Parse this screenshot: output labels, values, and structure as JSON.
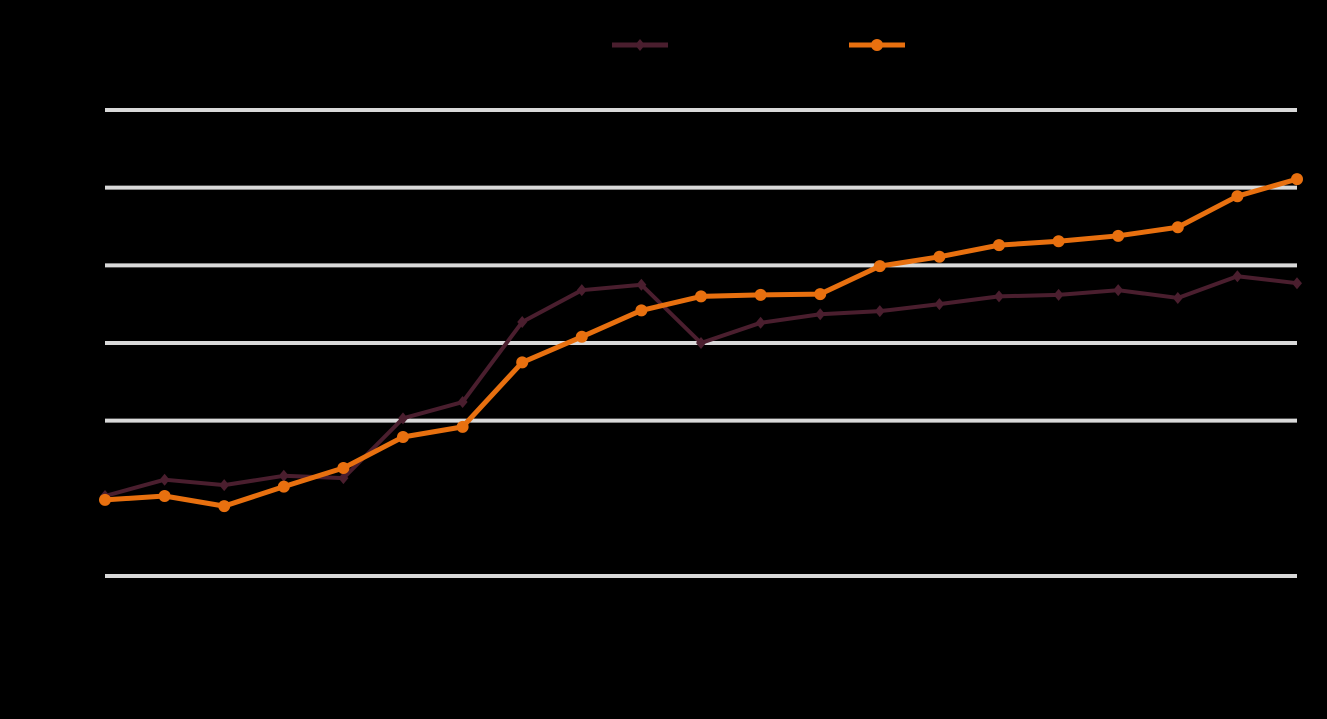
{
  "chart_data": {
    "type": "line",
    "categories": [
      null,
      null,
      null,
      null,
      null,
      null,
      null,
      null,
      null,
      null,
      null,
      null,
      null,
      null,
      null,
      null,
      null,
      null,
      null,
      null,
      null
    ],
    "series": [
      {
        "color": "#4a1e2e",
        "marker": "diamond",
        "values": [
          1.03,
          1.24,
          1.17,
          1.29,
          1.26,
          2.03,
          2.24,
          3.27,
          3.68,
          3.75,
          3.0,
          3.26,
          3.37,
          3.41,
          3.5,
          3.6,
          3.62,
          3.68,
          3.58,
          3.86,
          3.77
        ]
      },
      {
        "color": "#e8700f",
        "marker": "circle",
        "values": [
          0.98,
          1.03,
          0.9,
          1.15,
          1.39,
          1.79,
          1.92,
          2.75,
          3.08,
          3.42,
          3.6,
          3.62,
          3.63,
          3.99,
          4.11,
          4.26,
          4.31,
          4.38,
          4.49,
          4.89,
          5.11
        ]
      }
    ],
    "ylim": [
      0,
      6
    ],
    "yticks": [
      0,
      2,
      3,
      4,
      5,
      6
    ],
    "grid": true,
    "legend": "top"
  }
}
